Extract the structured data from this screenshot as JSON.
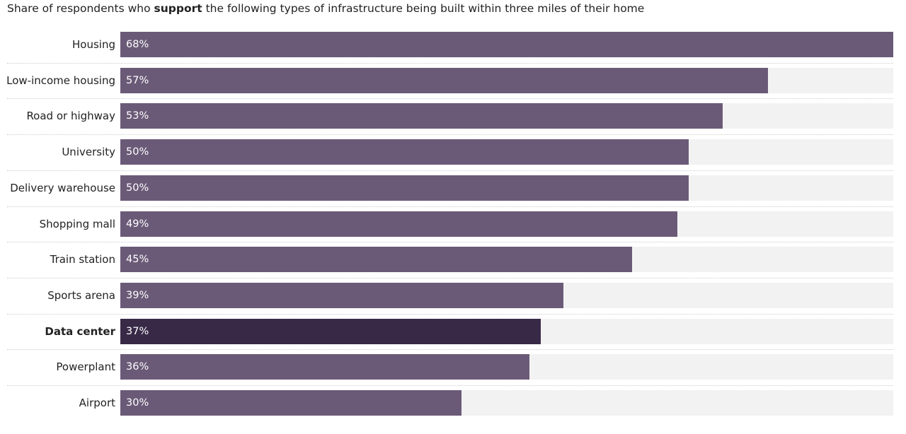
{
  "chart_data": {
    "type": "bar",
    "orientation": "horizontal",
    "title_parts": [
      "Share of respondents who ",
      "support",
      " the following types of infrastructure being built within three miles of their home"
    ],
    "categories": [
      "Housing",
      "Low-income housing",
      "Road or highway",
      "University",
      "Delivery warehouse",
      "Shopping mall",
      "Train station",
      "Sports arena",
      "Data center",
      "Powerplant",
      "Airport"
    ],
    "values": [
      68,
      57,
      53,
      50,
      50,
      49,
      45,
      39,
      37,
      36,
      30
    ],
    "value_labels": [
      "68%",
      "57%",
      "53%",
      "50%",
      "50%",
      "49%",
      "45%",
      "39%",
      "37%",
      "36%",
      "30%"
    ],
    "highlight": "Data center",
    "xlim": [
      0,
      68
    ],
    "colors": {
      "bar": "#6a5a77",
      "highlight": "#382a47",
      "track": "#f2f2f2"
    }
  }
}
